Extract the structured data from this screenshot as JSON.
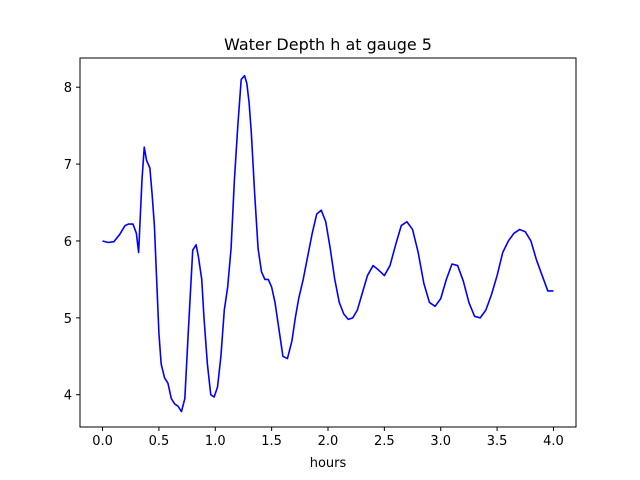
{
  "chart_data": {
    "type": "line",
    "title": "Water Depth h at gauge 5",
    "xlabel": "hours",
    "ylabel": "",
    "xlim": [
      -0.2,
      4.2
    ],
    "ylim": [
      3.58,
      8.38
    ],
    "xticks": [
      0.0,
      0.5,
      1.0,
      1.5,
      2.0,
      2.5,
      3.0,
      3.5,
      4.0
    ],
    "xtick_labels": [
      "0.0",
      "0.5",
      "1.0",
      "1.5",
      "2.0",
      "2.5",
      "3.0",
      "3.5",
      "4.0"
    ],
    "yticks": [
      4,
      5,
      6,
      7,
      8
    ],
    "ytick_labels": [
      "4",
      "5",
      "6",
      "7",
      "8"
    ],
    "grid": false,
    "series": [
      {
        "color": "#0000ff",
        "x": [
          0.0,
          0.05,
          0.1,
          0.15,
          0.2,
          0.23,
          0.27,
          0.3,
          0.32,
          0.35,
          0.37,
          0.39,
          0.42,
          0.44,
          0.46,
          0.48,
          0.5,
          0.52,
          0.55,
          0.58,
          0.61,
          0.64,
          0.67,
          0.7,
          0.73,
          0.76,
          0.8,
          0.83,
          0.85,
          0.88,
          0.9,
          0.93,
          0.96,
          0.99,
          1.02,
          1.05,
          1.08,
          1.11,
          1.14,
          1.17,
          1.2,
          1.23,
          1.26,
          1.28,
          1.3,
          1.32,
          1.35,
          1.38,
          1.41,
          1.44,
          1.47,
          1.5,
          1.53,
          1.56,
          1.6,
          1.64,
          1.68,
          1.71,
          1.74,
          1.78,
          1.82,
          1.86,
          1.9,
          1.94,
          1.98,
          2.02,
          2.06,
          2.1,
          2.14,
          2.18,
          2.22,
          2.26,
          2.3,
          2.35,
          2.4,
          2.45,
          2.5,
          2.55,
          2.6,
          2.65,
          2.7,
          2.75,
          2.8,
          2.85,
          2.9,
          2.95,
          3.0,
          3.05,
          3.1,
          3.15,
          3.2,
          3.25,
          3.3,
          3.35,
          3.4,
          3.45,
          3.5,
          3.55,
          3.6,
          3.65,
          3.7,
          3.75,
          3.8,
          3.85,
          3.9,
          3.95,
          4.0
        ],
        "y": [
          6.0,
          5.98,
          5.99,
          6.08,
          6.2,
          6.22,
          6.22,
          6.1,
          5.85,
          6.8,
          7.22,
          7.05,
          6.95,
          6.6,
          6.2,
          5.5,
          4.8,
          4.4,
          4.22,
          4.15,
          3.95,
          3.88,
          3.85,
          3.78,
          3.95,
          4.8,
          5.88,
          5.95,
          5.8,
          5.5,
          5.0,
          4.4,
          4.0,
          3.97,
          4.1,
          4.5,
          5.1,
          5.4,
          5.9,
          6.8,
          7.5,
          8.1,
          8.15,
          8.05,
          7.8,
          7.4,
          6.6,
          5.9,
          5.6,
          5.5,
          5.5,
          5.4,
          5.2,
          4.9,
          4.5,
          4.47,
          4.7,
          5.0,
          5.25,
          5.5,
          5.8,
          6.1,
          6.35,
          6.4,
          6.25,
          5.9,
          5.5,
          5.2,
          5.05,
          4.98,
          5.0,
          5.1,
          5.3,
          5.55,
          5.68,
          5.62,
          5.55,
          5.68,
          5.95,
          6.2,
          6.25,
          6.15,
          5.85,
          5.45,
          5.2,
          5.15,
          5.25,
          5.5,
          5.7,
          5.68,
          5.48,
          5.2,
          5.02,
          5.0,
          5.1,
          5.3,
          5.55,
          5.85,
          6.0,
          6.1,
          6.15,
          6.12,
          6.0,
          5.75,
          5.55,
          5.35,
          5.35
        ]
      }
    ]
  }
}
